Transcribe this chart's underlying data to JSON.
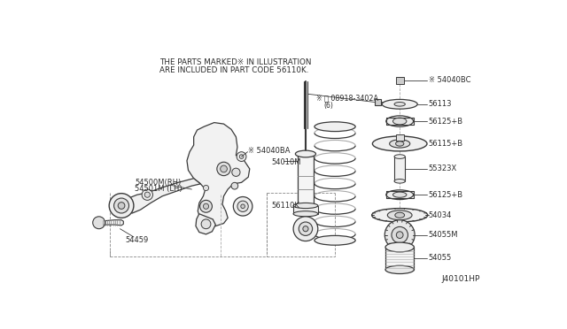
{
  "bg_color": "#ffffff",
  "line_color": "#3a3a3a",
  "text_color": "#2a2a2a",
  "header1": "THE PARTS MARKED※ IN ILLUSTRATION",
  "header2": "ARE INCLUDED IN PART CODE 56110K.",
  "footer": "J40101HP",
  "figsize": [
    6.4,
    3.72
  ],
  "dpi": 100
}
